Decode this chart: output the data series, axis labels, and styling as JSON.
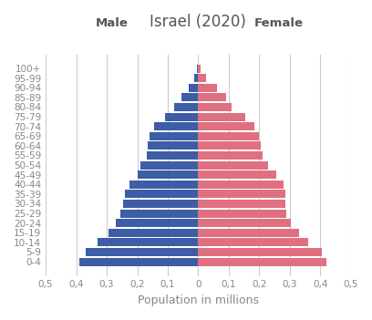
{
  "title": "Israel (2020)",
  "xlabel": "Population in millions",
  "age_groups": [
    "0-4",
    "5-9",
    "10-14",
    "15-19",
    "20-24",
    "25-29",
    "30-34",
    "35-39",
    "40-44",
    "45-49",
    "50-54",
    "55-59",
    "60-64",
    "65-69",
    "70-74",
    "75-79",
    "80-84",
    "85-89",
    "90-94",
    "95-99",
    "100+"
  ],
  "male": [
    0.39,
    0.37,
    0.33,
    0.295,
    0.27,
    0.255,
    0.245,
    0.24,
    0.225,
    0.2,
    0.19,
    0.17,
    0.165,
    0.16,
    0.145,
    0.11,
    0.08,
    0.055,
    0.032,
    0.012,
    0.003
  ],
  "female": [
    0.42,
    0.405,
    0.36,
    0.33,
    0.305,
    0.29,
    0.285,
    0.285,
    0.28,
    0.255,
    0.23,
    0.21,
    0.205,
    0.2,
    0.185,
    0.155,
    0.11,
    0.09,
    0.06,
    0.025,
    0.007
  ],
  "male_color": "#3d5ea6",
  "female_color": "#e07080",
  "background_color": "#ffffff",
  "label_male": "Male",
  "label_female": "Female",
  "xlim": 0.5,
  "grid_color": "#cccccc",
  "title_fontsize": 12,
  "axis_label_fontsize": 9,
  "tick_fontsize": 7.5,
  "bar_height": 0.85
}
